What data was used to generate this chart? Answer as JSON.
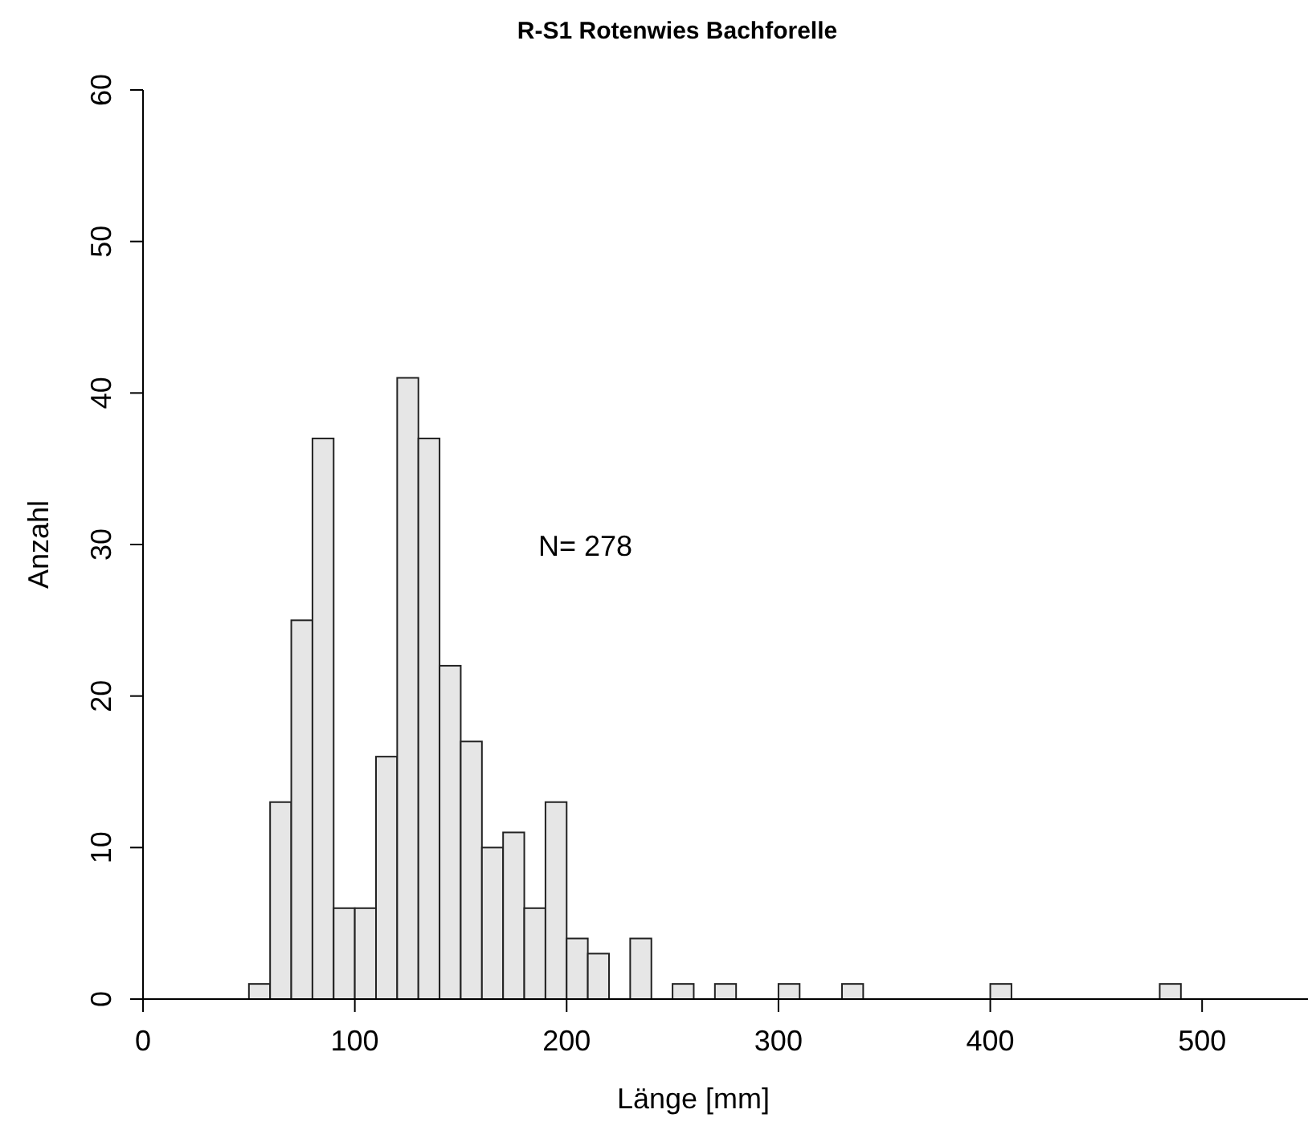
{
  "chart_data": {
    "type": "histogram",
    "title": "R-S1 Rotenwies Bachforelle",
    "xlabel": "Länge [mm]",
    "ylabel": "Anzahl",
    "bins": [
      50,
      60,
      70,
      80,
      90,
      100,
      110,
      120,
      130,
      140,
      150,
      160,
      170,
      180,
      190,
      200,
      210,
      220,
      230,
      240,
      250,
      260,
      270,
      280,
      290,
      300,
      310,
      320,
      330,
      340,
      350,
      360,
      370,
      380,
      390,
      400,
      410,
      420,
      430,
      440,
      450,
      460,
      470,
      480,
      490
    ],
    "values": [
      1,
      13,
      25,
      37,
      6,
      6,
      16,
      41,
      37,
      22,
      17,
      10,
      11,
      6,
      13,
      4,
      3,
      0,
      4,
      0,
      1,
      0,
      1,
      0,
      0,
      1,
      0,
      0,
      1,
      0,
      0,
      0,
      0,
      0,
      0,
      1,
      0,
      0,
      0,
      0,
      0,
      0,
      0,
      1
    ],
    "color": "#e6e6e6",
    "xlim": [
      0,
      550
    ],
    "xticks": [
      0,
      100,
      200,
      300,
      400,
      500
    ],
    "ylim": [
      0,
      60
    ],
    "yticks": [
      0,
      10,
      20,
      30,
      40,
      50,
      60
    ],
    "annotations": [
      "N= 278"
    ],
    "grid": false
  }
}
